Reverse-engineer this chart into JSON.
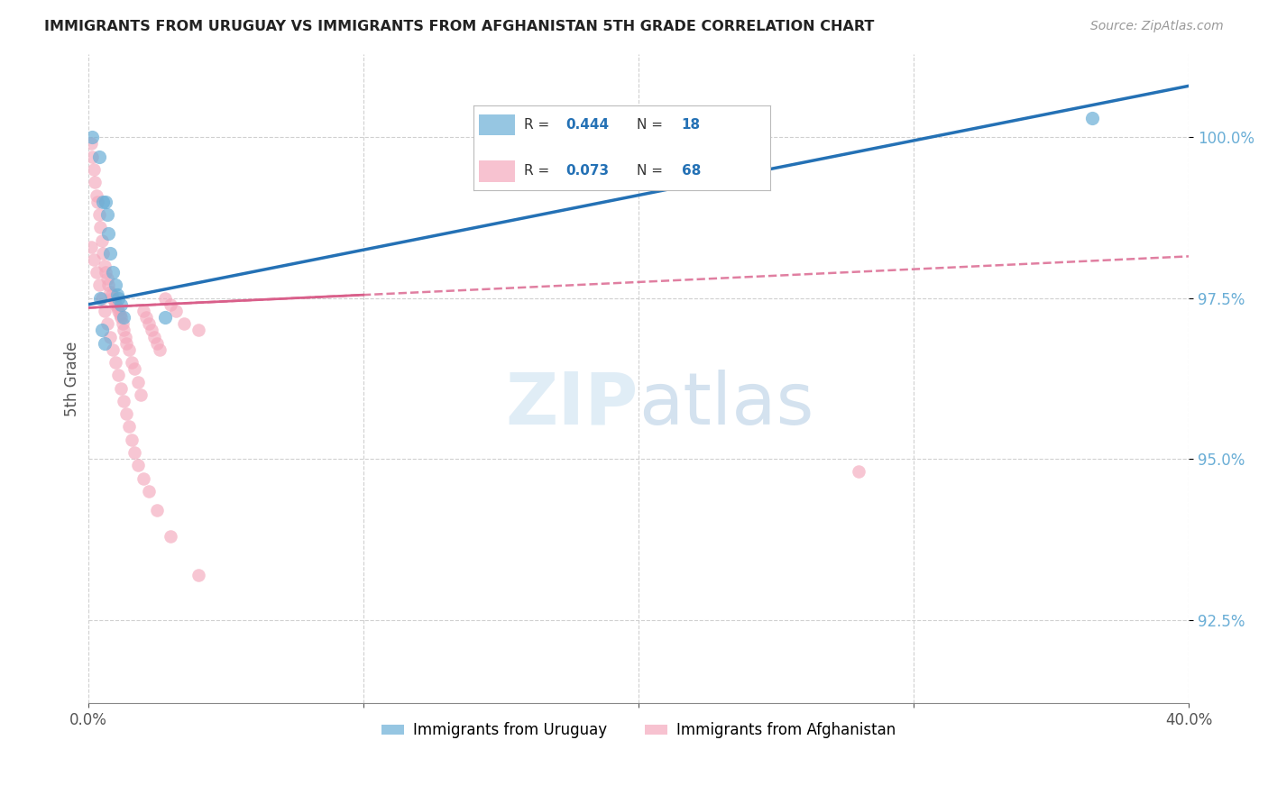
{
  "title": "IMMIGRANTS FROM URUGUAY VS IMMIGRANTS FROM AFGHANISTAN 5TH GRADE CORRELATION CHART",
  "source": "Source: ZipAtlas.com",
  "ylabel": "5th Grade",
  "yticks": [
    92.5,
    95.0,
    97.5,
    100.0
  ],
  "ytick_labels": [
    "92.5%",
    "95.0%",
    "97.5%",
    "100.0%"
  ],
  "xmin": 0.0,
  "xmax": 40.0,
  "ymin": 91.2,
  "ymax": 101.3,
  "legend_label_blue": "Immigrants from Uruguay",
  "legend_label_pink": "Immigrants from Afghanistan",
  "watermark_zip": "ZIP",
  "watermark_atlas": "atlas",
  "blue_color": "#6aaed6",
  "pink_color": "#f4a8bc",
  "trend_blue_color": "#2471b5",
  "trend_pink_color": "#d95f8a",
  "blue_R": "0.444",
  "blue_N": "18",
  "pink_R": "0.073",
  "pink_N": "68",
  "uruguay_x": [
    0.15,
    0.4,
    0.55,
    0.65,
    0.7,
    0.75,
    0.8,
    0.9,
    1.0,
    1.05,
    1.1,
    1.2,
    1.3,
    0.5,
    0.6,
    0.45,
    2.8,
    36.5
  ],
  "uruguay_y": [
    100.0,
    99.7,
    99.0,
    99.0,
    98.8,
    98.5,
    98.2,
    97.9,
    97.7,
    97.55,
    97.5,
    97.4,
    97.2,
    97.0,
    96.8,
    97.5,
    97.2,
    100.3
  ],
  "afghanistan_x": [
    0.1,
    0.15,
    0.2,
    0.25,
    0.3,
    0.35,
    0.4,
    0.45,
    0.5,
    0.55,
    0.6,
    0.65,
    0.7,
    0.75,
    0.8,
    0.85,
    0.9,
    0.95,
    1.0,
    1.05,
    1.1,
    1.15,
    1.2,
    1.25,
    1.3,
    1.35,
    1.4,
    1.5,
    1.6,
    1.7,
    1.8,
    1.9,
    2.0,
    2.1,
    2.2,
    2.3,
    2.4,
    2.5,
    2.6,
    2.8,
    3.0,
    3.2,
    3.5,
    4.0,
    0.1,
    0.2,
    0.3,
    0.4,
    0.5,
    0.6,
    0.7,
    0.8,
    0.9,
    1.0,
    1.1,
    1.2,
    1.3,
    1.4,
    1.5,
    1.6,
    1.7,
    1.8,
    2.0,
    2.2,
    2.5,
    3.0,
    4.0,
    28.0
  ],
  "afghanistan_y": [
    99.9,
    99.7,
    99.5,
    99.3,
    99.1,
    99.0,
    98.8,
    98.6,
    98.4,
    98.2,
    98.0,
    97.9,
    97.8,
    97.7,
    97.6,
    97.55,
    97.5,
    97.45,
    97.4,
    97.35,
    97.3,
    97.25,
    97.2,
    97.1,
    97.0,
    96.9,
    96.8,
    96.7,
    96.5,
    96.4,
    96.2,
    96.0,
    97.3,
    97.2,
    97.1,
    97.0,
    96.9,
    96.8,
    96.7,
    97.5,
    97.4,
    97.3,
    97.1,
    97.0,
    98.3,
    98.1,
    97.9,
    97.7,
    97.5,
    97.3,
    97.1,
    96.9,
    96.7,
    96.5,
    96.3,
    96.1,
    95.9,
    95.7,
    95.5,
    95.3,
    95.1,
    94.9,
    94.7,
    94.5,
    94.2,
    93.8,
    93.2,
    94.8
  ],
  "blue_trend_x0": 0.0,
  "blue_trend_y0": 97.4,
  "blue_trend_x1": 40.0,
  "blue_trend_y1": 100.8,
  "pink_solid_x0": 0.0,
  "pink_solid_y0": 97.35,
  "pink_solid_x1": 10.0,
  "pink_solid_y1": 97.55,
  "pink_dash_x0": 0.0,
  "pink_dash_y0": 97.35,
  "pink_dash_x1": 40.0,
  "pink_dash_y1": 98.15
}
